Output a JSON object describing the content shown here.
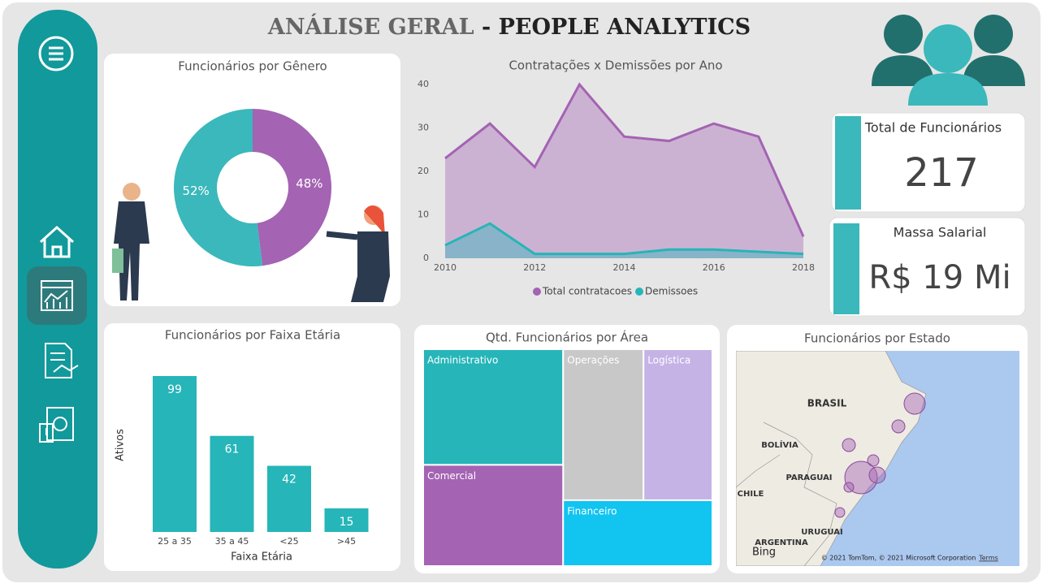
{
  "header": {
    "title_light": "ANÁLISE GERAL",
    "title_bold": "- PEOPLE ANALYTICS"
  },
  "cards": [
    {
      "label": "Total de Funcionários",
      "value": "217"
    },
    {
      "label": "Massa Salarial",
      "value": "R$ 19 Mi"
    }
  ],
  "chart_data": [
    {
      "type": "donut",
      "title": "Funcionários por Gênero",
      "values": [
        48,
        52
      ],
      "value_labels": [
        "48%",
        "52%"
      ],
      "colors": [
        "#a463b3",
        "#3bb8bb"
      ]
    },
    {
      "type": "area",
      "title": "Contratações x Demissões por Ano",
      "x": [
        2010,
        2011,
        2012,
        2013,
        2014,
        2015,
        2016,
        2017,
        2018
      ],
      "series": [
        {
          "name": "Total contratacoes",
          "color": "#a463b3",
          "values": [
            23,
            31,
            21,
            40,
            28,
            27,
            31,
            28,
            5
          ]
        },
        {
          "name": "Demissoes",
          "color": "#26b5b8",
          "values": [
            3,
            8,
            1,
            1,
            1,
            2,
            2,
            1.5,
            1
          ]
        }
      ],
      "xlim": [
        2010,
        2018
      ],
      "xticks": [
        2010,
        2012,
        2014,
        2016,
        2018
      ],
      "ylim": [
        0,
        40
      ],
      "yticks": [
        0,
        10,
        20,
        30,
        40
      ]
    },
    {
      "type": "bar",
      "title": "Funcionários por Faixa Etária",
      "categories": [
        "25 a 35",
        "35 a 45",
        "<25",
        ">45"
      ],
      "values": [
        99,
        61,
        42,
        15
      ],
      "color": "#26b5b8",
      "xlabel": "Faixa Etária",
      "ylabel": "Ativos"
    },
    {
      "type": "treemap",
      "title": "Qtd. Funcionários por Área",
      "categories": [
        "Administrativo",
        "Operações",
        "Logística",
        "Comercial",
        "Financeiro"
      ],
      "values": [
        56,
        42,
        36,
        49,
        34
      ],
      "colors": [
        "#26b5b8",
        "#c8c8c8",
        "#c5b3e6",
        "#a463b3",
        "#12c4f0"
      ]
    }
  ],
  "map": {
    "title": "Funcionários por Estado",
    "labels": [
      "BRASIL",
      "BOLÍVIA",
      "PARAGUAI",
      "CHILE",
      "URUGUAI",
      "ARGENTINA"
    ],
    "attribution": "© 2021 TomTom, © 2021 Microsoft Corporation",
    "terms": "Terms",
    "bing": "Bing"
  }
}
